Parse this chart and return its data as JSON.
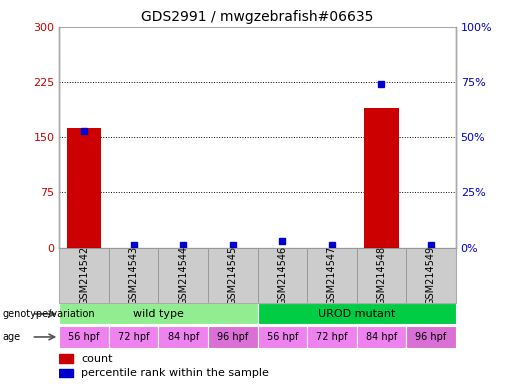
{
  "title": "GDS2991 / mwgzebrafish#06635",
  "samples": [
    "GSM214542",
    "GSM214543",
    "GSM214544",
    "GSM214545",
    "GSM214546",
    "GSM214547",
    "GSM214548",
    "GSM214549"
  ],
  "counts": [
    163,
    0,
    0,
    0,
    0,
    0,
    190,
    0
  ],
  "percentiles": [
    53,
    1,
    1,
    1,
    3,
    1,
    74,
    1
  ],
  "ylim_left": [
    0,
    300
  ],
  "ylim_right": [
    0,
    100
  ],
  "yticks_left": [
    0,
    75,
    150,
    225,
    300
  ],
  "yticks_right": [
    0,
    25,
    50,
    75,
    100
  ],
  "ytick_labels_left": [
    "0",
    "75",
    "150",
    "225",
    "300"
  ],
  "ytick_labels_right": [
    "0%",
    "25%",
    "50%",
    "75%",
    "100%"
  ],
  "genotype_groups": [
    {
      "label": "wild type",
      "start": 0,
      "end": 4,
      "color": "#90EE90"
    },
    {
      "label": "UROD mutant",
      "start": 4,
      "end": 8,
      "color": "#00CC44"
    }
  ],
  "age_labels": [
    "56 hpf",
    "72 hpf",
    "84 hpf",
    "96 hpf",
    "56 hpf",
    "72 hpf",
    "84 hpf",
    "96 hpf"
  ],
  "age_colors": [
    "#EE82EE",
    "#EE82EE",
    "#EE82EE",
    "#DA70D6",
    "#EE82EE",
    "#EE82EE",
    "#EE82EE",
    "#DA70D6"
  ],
  "bar_color": "#CC0000",
  "dot_color": "#0000CC",
  "grid_color": "#000000",
  "sample_bg_color": "#CCCCCC",
  "sample_border_color": "#999999",
  "label_color_left": "#CC0000",
  "label_color_right": "#0000CC",
  "genotype_label": "genotype/variation",
  "age_label": "age",
  "legend_count": "count",
  "legend_percentile": "percentile rank within the sample",
  "bar_width": 0.7
}
